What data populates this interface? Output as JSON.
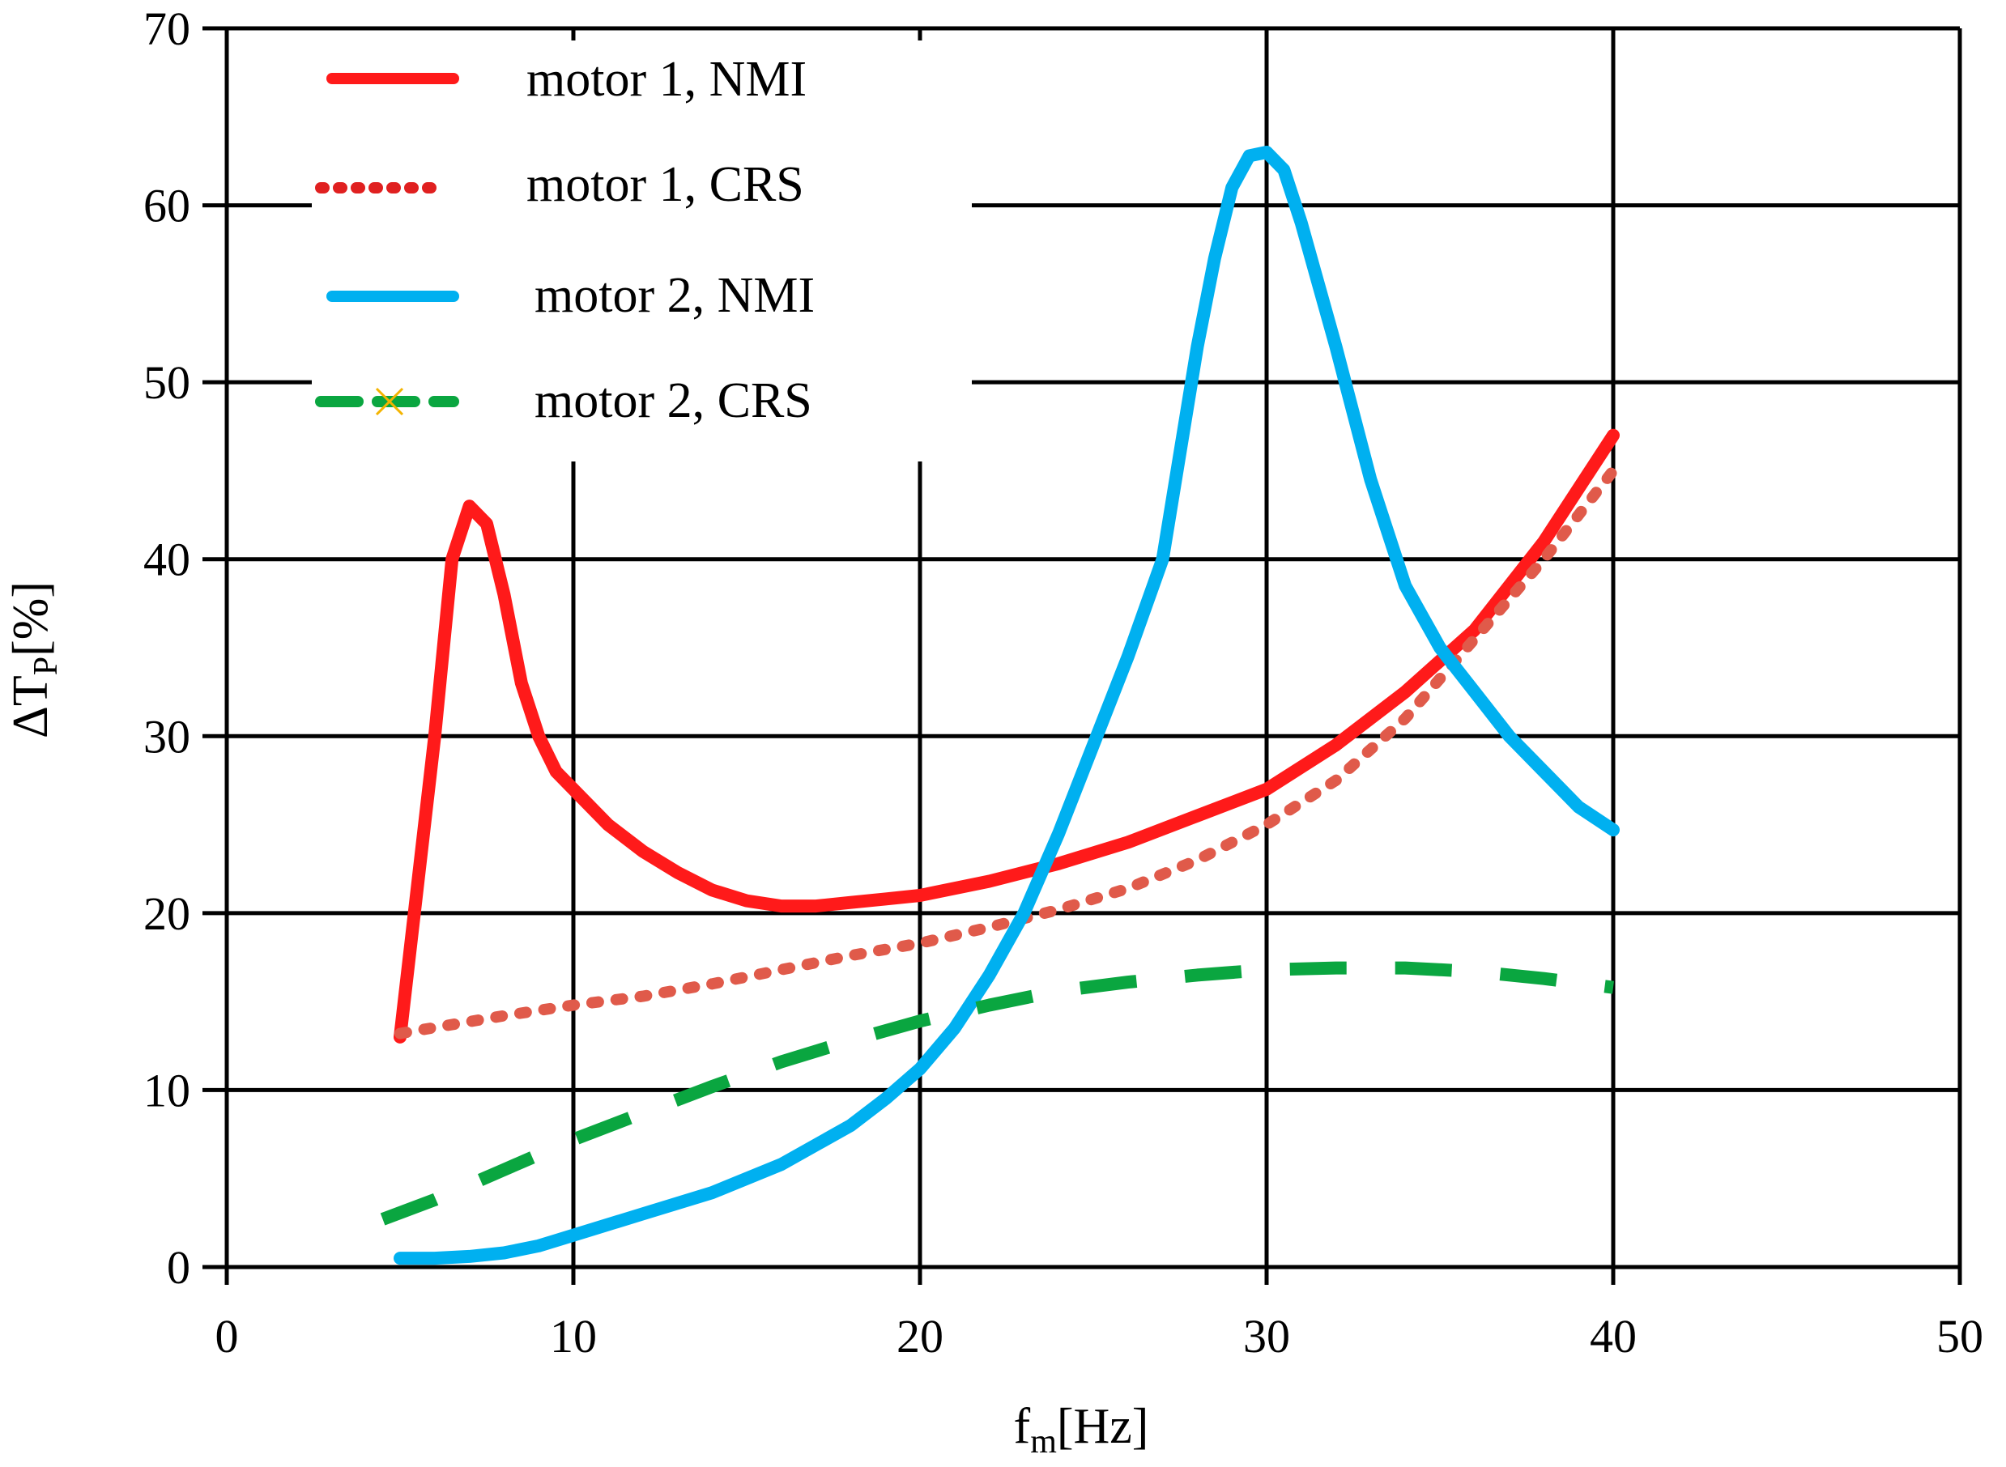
{
  "chart_data": {
    "type": "line",
    "title": "",
    "xlabel": {
      "main": "f",
      "sub": "m",
      "unit": "[Hz]"
    },
    "ylabel": {
      "main": "ΔT",
      "sub": "P",
      "unit": "[%]"
    },
    "xlim": [
      0,
      50
    ],
    "ylim": [
      0,
      70
    ],
    "xticks": [
      0,
      10,
      20,
      30,
      40,
      50
    ],
    "yticks": [
      0,
      10,
      20,
      30,
      40,
      50,
      60,
      70
    ],
    "xtick_labels": [
      "0",
      "10",
      "20",
      "30",
      "40",
      "50"
    ],
    "ytick_labels": [
      "0",
      "10",
      "20",
      "30",
      "40",
      "50",
      "60",
      "70"
    ],
    "grid": true,
    "legend_position": "top-left",
    "series": [
      {
        "name": "motor 1, NMI",
        "color": "#ff1a1a",
        "style": "solid",
        "x": [
          5,
          6,
          6.5,
          7,
          7.5,
          8,
          8.5,
          9,
          9.5,
          10,
          11,
          12,
          13,
          14,
          15,
          16,
          17,
          18,
          19,
          20,
          22,
          24,
          26,
          28,
          30,
          32,
          34,
          36,
          38,
          40
        ],
        "y": [
          13,
          30,
          40,
          43,
          42,
          38,
          33,
          30,
          28,
          27,
          25,
          23.5,
          22.3,
          21.3,
          20.7,
          20.4,
          20.4,
          20.6,
          20.8,
          21,
          21.8,
          22.8,
          24,
          25.5,
          27,
          29.5,
          32.5,
          36,
          41,
          47
        ]
      },
      {
        "name": "motor 1, CRS",
        "color": "#e05a4a",
        "style": "dotted",
        "x": [
          5,
          8,
          10,
          12,
          14,
          16,
          18,
          20,
          22,
          24,
          26,
          28,
          30,
          32,
          34,
          36,
          38,
          40
        ],
        "y": [
          13.2,
          14.2,
          14.8,
          15.3,
          16,
          16.8,
          17.6,
          18.3,
          19.2,
          20.2,
          21.4,
          23,
          25,
          27.5,
          31,
          35.5,
          40,
          45
        ]
      },
      {
        "name": "motor 2, NMI",
        "color": "#00b0f0",
        "style": "solid",
        "x": [
          5,
          6,
          7,
          8,
          9,
          10,
          12,
          14,
          16,
          18,
          19,
          20,
          21,
          22,
          23,
          24,
          25,
          26,
          27,
          27.5,
          28,
          28.5,
          29,
          29.5,
          30,
          30.5,
          31,
          32,
          33,
          34,
          35,
          36,
          37,
          38,
          39,
          40
        ],
        "y": [
          0.5,
          0.5,
          0.6,
          0.8,
          1.2,
          1.8,
          3,
          4.2,
          5.8,
          8,
          9.5,
          11.2,
          13.5,
          16.5,
          20,
          24.5,
          29.5,
          34.5,
          40,
          46,
          52,
          57,
          61,
          62.8,
          63,
          62,
          59,
          52,
          44.5,
          38.5,
          35,
          32.5,
          30,
          28,
          26,
          24.7
        ]
      },
      {
        "name": "motor 2, CRS",
        "color": "#0aa640",
        "style": "dashed",
        "x": [
          4.5,
          6,
          8,
          10,
          12,
          14,
          16,
          18,
          20,
          22,
          24,
          26,
          28,
          30,
          32,
          34,
          36,
          38,
          40
        ],
        "y": [
          2.7,
          3.8,
          5.5,
          7.2,
          8.7,
          10.2,
          11.6,
          12.8,
          13.9,
          14.8,
          15.6,
          16.1,
          16.5,
          16.8,
          16.9,
          16.9,
          16.7,
          16.3,
          15.8
        ]
      }
    ]
  }
}
